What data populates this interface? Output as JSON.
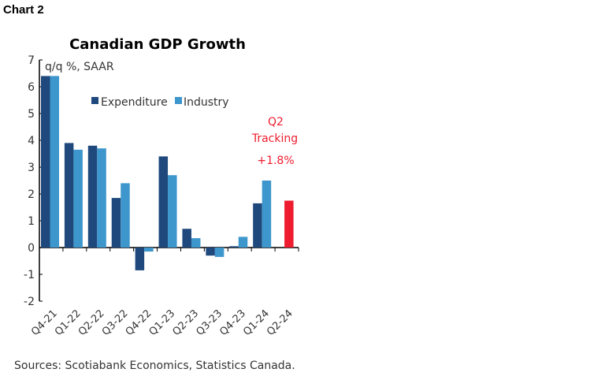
{
  "caption": "Chart 2",
  "chart_data": {
    "type": "bar",
    "title": "Canadian GDP Growth",
    "ylabel": "q/q %, SAAR",
    "ylim": [
      -2,
      7
    ],
    "yticks": [
      -2,
      -1,
      0,
      1,
      2,
      3,
      4,
      5,
      6,
      7
    ],
    "categories": [
      "Q4-21",
      "Q1-22",
      "Q2-22",
      "Q3-22",
      "Q4-22",
      "Q1-23",
      "Q2-23",
      "Q3-23",
      "Q4-23",
      "Q1-24",
      "Q2-24"
    ],
    "series": [
      {
        "name": "Expenditure",
        "color": "#1f497d",
        "values": [
          6.4,
          3.9,
          3.8,
          1.85,
          -0.85,
          3.4,
          0.7,
          -0.3,
          0.05,
          1.65,
          null
        ]
      },
      {
        "name": "Industry",
        "color": "#3e97cc",
        "values": [
          6.4,
          3.65,
          3.7,
          2.4,
          -0.15,
          2.7,
          0.35,
          -0.35,
          0.4,
          2.5,
          null
        ]
      },
      {
        "name": "Q2 Tracking",
        "color": "#ee1c2e",
        "values": [
          null,
          null,
          null,
          null,
          null,
          null,
          null,
          null,
          null,
          null,
          1.75
        ]
      }
    ],
    "legend": "top-center",
    "annotation": {
      "lines": [
        "Q2",
        "Tracking",
        "+1.8%"
      ],
      "color": "#ee1c2e"
    },
    "grid": false
  },
  "source": "Sources: Scotiabank Economics, Statistics Canada."
}
